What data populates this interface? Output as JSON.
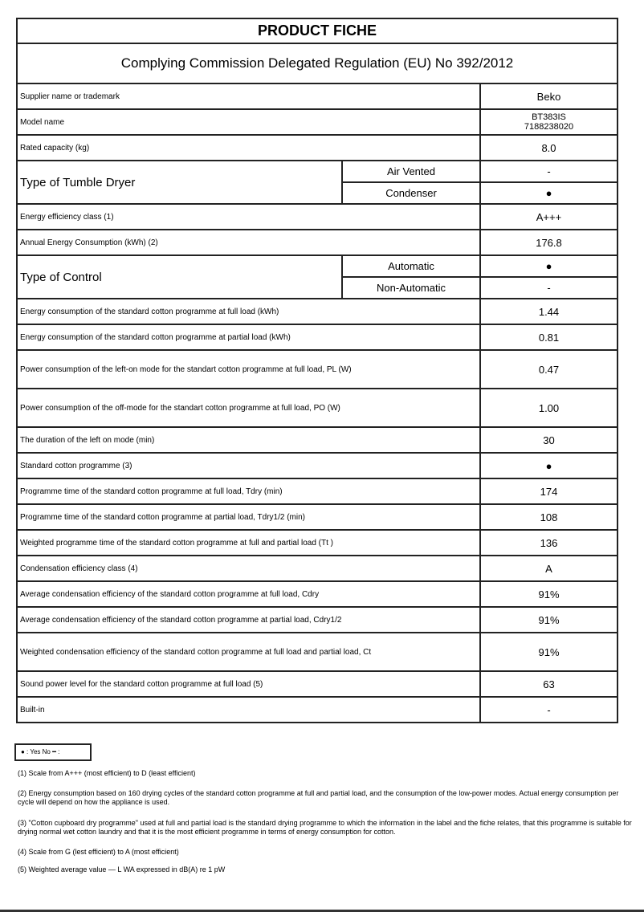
{
  "header": {
    "title": "PRODUCT FICHE",
    "subtitle": "Complying Commission Delegated Regulation (EU) No 392/2012"
  },
  "rows": [
    {
      "label": "Supplier name or trademark",
      "value": "Beko",
      "h": 0
    },
    {
      "label": "Model name",
      "value": "BT383IS\n7188238020",
      "small": true
    },
    {
      "label": "Rated capacity (kg)",
      "value": "8.0"
    },
    {
      "label": "Type of Tumble Dryer",
      "split": [
        {
          "label": "Air Vented",
          "value": "-"
        },
        {
          "label": "Condenser",
          "value": "●"
        }
      ]
    },
    {
      "label": "Energy efficiency class (1)",
      "value": "A+++"
    },
    {
      "label": "Annual Energy Consumption (kWh) (2)",
      "value": "176.8"
    },
    {
      "label": "Type of Control",
      "split": [
        {
          "label": "Automatic",
          "value": "●"
        },
        {
          "label": "Non-Automatic",
          "value": "-"
        }
      ]
    },
    {
      "label": "Energy consumption of the standard cotton programme at full load (kWh)",
      "value": "1.44"
    },
    {
      "label": "Energy consumption of the standard cotton programme at partial load (kWh)",
      "value": "0.81"
    },
    {
      "label": "Power consumption of the left-on mode for the standart cotton programme at full load, PL (W)",
      "value": "0.47",
      "tall": true
    },
    {
      "label": "Power consumption of the off-mode for the standart cotton programme at full load, PO (W)",
      "value": "1.00",
      "tall": true
    },
    {
      "label": "The duration of the left on mode (min)",
      "value": "30"
    },
    {
      "label": "Standard cotton programme (3)",
      "value": "●"
    },
    {
      "label": "Programme time of the standard cotton programme at full load, Tdry (min)",
      "value": "174"
    },
    {
      "label": "Programme time of the standard cotton programme at partial load, Tdry1/2 (min)",
      "value": "108"
    },
    {
      "label": "Weighted programme time of the standard cotton programme at full and partial load (Tt )",
      "value": "136"
    },
    {
      "label": "Condensation efficiency class (4)",
      "value": "A"
    },
    {
      "label": "Average condensation efficiency of the standard cotton programme at full load, Cdry",
      "value": "91%"
    },
    {
      "label": "Average condensation efficiency of the standard cotton programme at partial load, Cdry1/2",
      "value": "91%"
    },
    {
      "label": "Weighted condensation efficiency of the standard cotton programme at full load and partial load, Ct",
      "value": "91%",
      "tall": true
    },
    {
      "label": "Sound power level for the standard cotton programme at full load (5)",
      "value": "63"
    },
    {
      "label": "Built-in",
      "value": "-"
    }
  ],
  "legend": "● : Yes No ━ :",
  "notes": [
    "(1) Scale from A+++ (most efficient) to D (least efficient)",
    "(2) Energy consumption based on 160 drying cycles of the standard cotton programme at full and partial load, and the consumption of the low-power modes. Actual energy consumption per cycle will depend on how the appliance is used.",
    "(3) \"Cotton cupboard dry programme\" used at full and partial load is the standard drying programme to which the information  in the label and the fiche relates, that this programme is suitable for drying normal wet cotton laundry and that it is the most efficient programme in terms of energy consumption for cotton.",
    "(4) Scale from G (lest efficient) to A (most efficient)",
    "(5) Weighted average value — L WA    expressed in dB(A) re 1 pW"
  ]
}
